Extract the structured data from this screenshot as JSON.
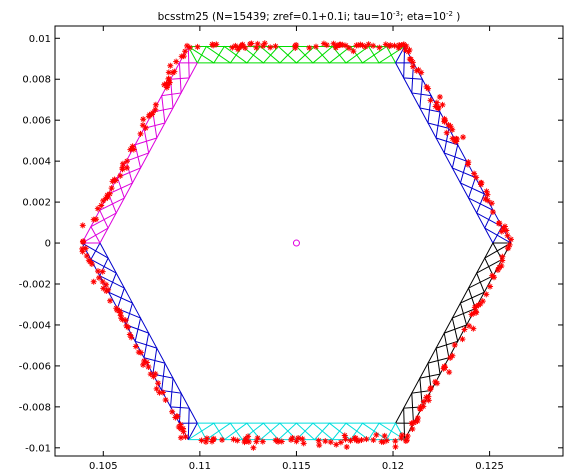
{
  "chart_data": {
    "type": "scatter",
    "title": {
      "prefix": "bcsstm25 (N=15439; zref=0.1+0.1i; tau=10",
      "tau_exp": "-3",
      "middle": "; eta=10",
      "eta_exp": "-2",
      "suffix": " )"
    },
    "xlabel": "",
    "ylabel": "",
    "xlim": [
      0.1025,
      0.1288
    ],
    "ylim": [
      -0.0104,
      0.0106
    ],
    "x_ticks": [
      0.105,
      0.11,
      0.115,
      0.12,
      0.125
    ],
    "x_tick_labels": [
      "0.105",
      "0.11",
      "0.115",
      "0.12",
      "0.125"
    ],
    "y_ticks": [
      -0.01,
      -0.008,
      -0.006,
      -0.004,
      -0.002,
      0,
      0.002,
      0.004,
      0.006,
      0.008,
      0.01
    ],
    "y_tick_labels": [
      "-0.01",
      "-0.008",
      "-0.006",
      "-0.004",
      "-0.002",
      "0",
      "0.002",
      "0.004",
      "0.006",
      "0.008",
      "0.01"
    ],
    "grid": false,
    "center_point": {
      "x": 0.115,
      "y": 0.0,
      "color": "#e000e0",
      "marker": "circle"
    },
    "hexagon": {
      "center": [
        0.115,
        0.0
      ],
      "vertices": [
        [
          0.1039,
          0.0
        ],
        [
          0.1094,
          0.0096
        ],
        [
          0.1206,
          0.0096
        ],
        [
          0.1261,
          0.0
        ],
        [
          0.1206,
          -0.0096
        ],
        [
          0.1094,
          -0.0096
        ]
      ],
      "band_width": 0.00093
    },
    "series": [
      {
        "edge": "top",
        "color": "#00dd00"
      },
      {
        "edge": "upper-right",
        "color": "#0000cc"
      },
      {
        "edge": "lower-right",
        "color": "#000000"
      },
      {
        "edge": "bottom",
        "color": "#00dddd"
      },
      {
        "edge": "lower-left",
        "color": "#0000cc"
      },
      {
        "edge": "upper-left",
        "color": "#dd00dd"
      }
    ],
    "eigenvalue_marker": {
      "color": "#ff0000",
      "marker": "asterisk"
    }
  }
}
